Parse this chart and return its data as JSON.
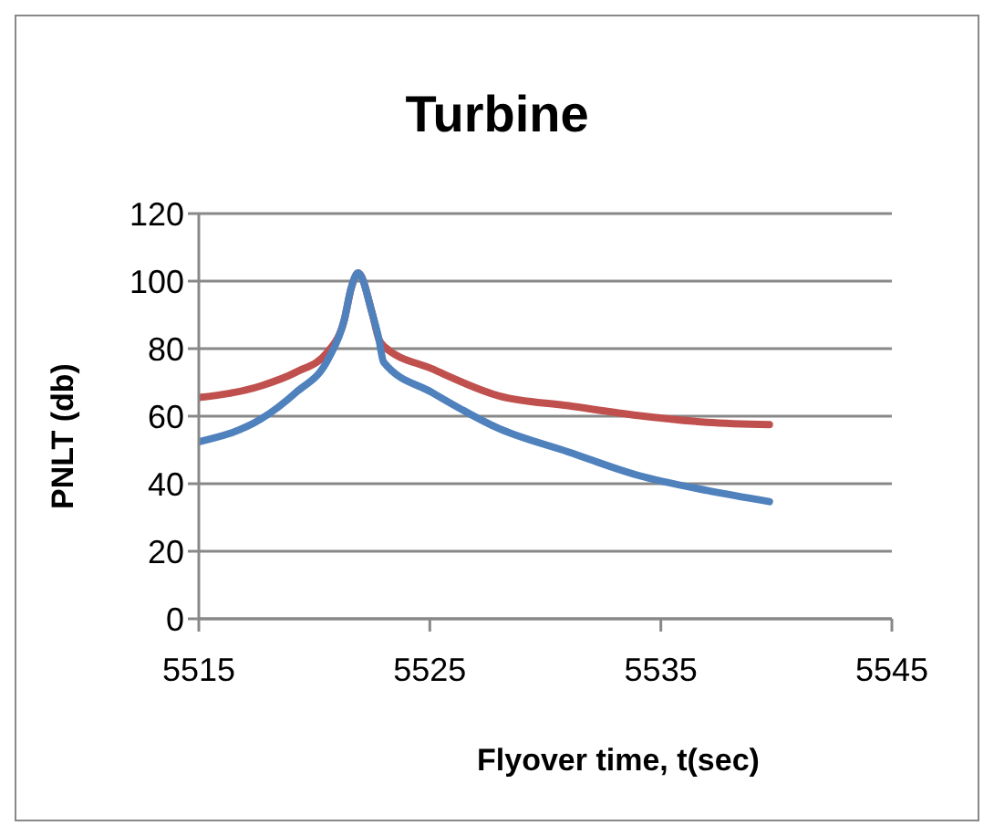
{
  "chart_data": {
    "type": "line",
    "title": "Turbine",
    "xlabel": "Flyover time, t(sec)",
    "ylabel": "PNLT (db)",
    "xlim": [
      5515,
      5545
    ],
    "xticks": [
      5515,
      5525,
      5535,
      5545
    ],
    "ylim": [
      0,
      120
    ],
    "yticks": [
      0,
      20,
      40,
      60,
      80,
      100,
      120
    ],
    "grid": "y",
    "legend": false,
    "marker": "none",
    "line_style": "solid",
    "series": [
      {
        "color": "#c0504d",
        "x": [
          5515,
          5517.7,
          5519.2,
          5520.6,
          5521.3,
          5521.6,
          5521.9,
          5522.5,
          5522.8,
          5523,
          5525.1,
          5528,
          5531,
          5534,
          5537,
          5539.7
        ],
        "values": [
          65.5,
          69,
          73,
          79.2,
          88.6,
          98,
          102.4,
          90.6,
          82.7,
          80.8,
          74,
          66,
          63.1,
          60.2,
          58.2,
          57.5
        ]
      },
      {
        "color": "#4f81bd",
        "x": [
          5515,
          5517.7,
          5519.2,
          5520.6,
          5521.3,
          5521.6,
          5521.9,
          5522.5,
          5522.8,
          5523,
          5525.1,
          5528,
          5531,
          5534,
          5537,
          5539.7
        ],
        "values": [
          52.4,
          59.2,
          67,
          76.9,
          88.6,
          98,
          102.4,
          90.6,
          82.7,
          76,
          67,
          56.3,
          49.4,
          42.5,
          38,
          34.7
        ]
      }
    ]
  }
}
